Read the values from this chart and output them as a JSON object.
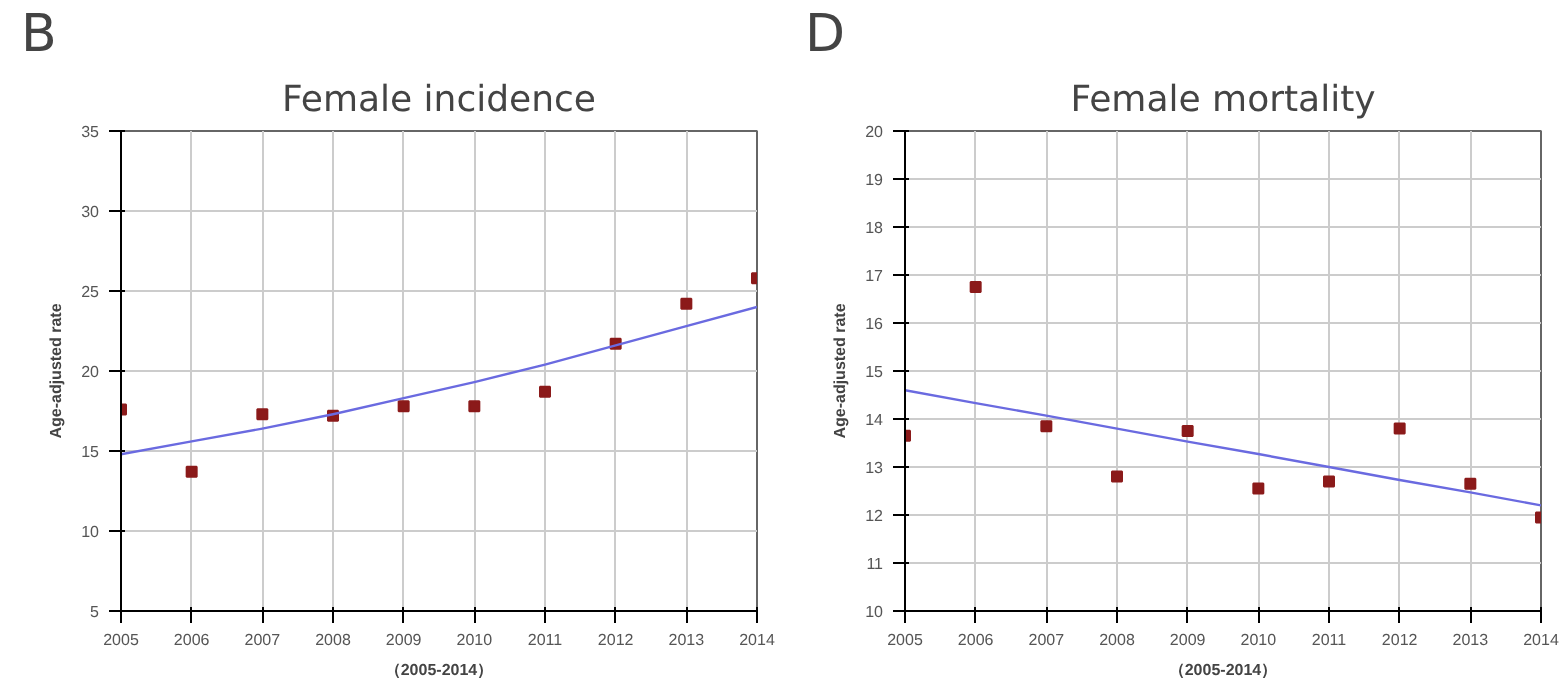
{
  "chart_data": [
    {
      "type": "scatter",
      "title": "Female incidence",
      "annotations": [
        "B"
      ],
      "xlabel": "（2005-2014）",
      "ylabel": "Age-adjusted rate",
      "x": [
        2005,
        2006,
        2007,
        2008,
        2009,
        2010,
        2011,
        2012,
        2013,
        2014
      ],
      "series": [
        {
          "color": "#8b1a1a",
          "marker": "square",
          "values": [
            17.6,
            13.7,
            17.3,
            17.2,
            17.8,
            17.8,
            18.7,
            21.7,
            24.2,
            25.8
          ]
        },
        {
          "type": "line",
          "color": "#6a6ae0",
          "line_style": "solid",
          "values": [
            14.8,
            15.6,
            16.4,
            17.3,
            18.3,
            19.3,
            20.4,
            21.6,
            22.8,
            24.0
          ]
        }
      ],
      "xlim": [
        2005,
        2014
      ],
      "ylim": [
        5,
        35
      ],
      "xticks": [
        2005,
        2006,
        2007,
        2008,
        2009,
        2010,
        2011,
        2012,
        2013,
        2014
      ],
      "yticks": [
        5,
        10,
        15,
        20,
        25,
        30,
        35
      ],
      "grid": true
    },
    {
      "type": "scatter",
      "title": "Female mortality",
      "annotations": [
        "D"
      ],
      "xlabel": "（2005-2014）",
      "ylabel": "Age-adjusted rate",
      "x": [
        2005,
        2006,
        2007,
        2008,
        2009,
        2010,
        2011,
        2012,
        2013,
        2014
      ],
      "series": [
        {
          "color": "#8b1a1a",
          "marker": "square",
          "values": [
            13.65,
            16.75,
            13.85,
            12.8,
            13.75,
            12.55,
            12.7,
            13.8,
            12.65,
            11.95
          ]
        },
        {
          "type": "line",
          "color": "#6a6ae0",
          "line_style": "solid",
          "values": [
            14.6,
            14.33,
            14.07,
            13.8,
            13.53,
            13.27,
            13.0,
            12.73,
            12.47,
            12.2
          ]
        }
      ],
      "xlim": [
        2005,
        2014
      ],
      "ylim": [
        10,
        20
      ],
      "xticks": [
        2005,
        2006,
        2007,
        2008,
        2009,
        2010,
        2011,
        2012,
        2013,
        2014
      ],
      "yticks": [
        10,
        11,
        12,
        13,
        14,
        15,
        16,
        17,
        18,
        19,
        20
      ],
      "grid": true
    }
  ]
}
